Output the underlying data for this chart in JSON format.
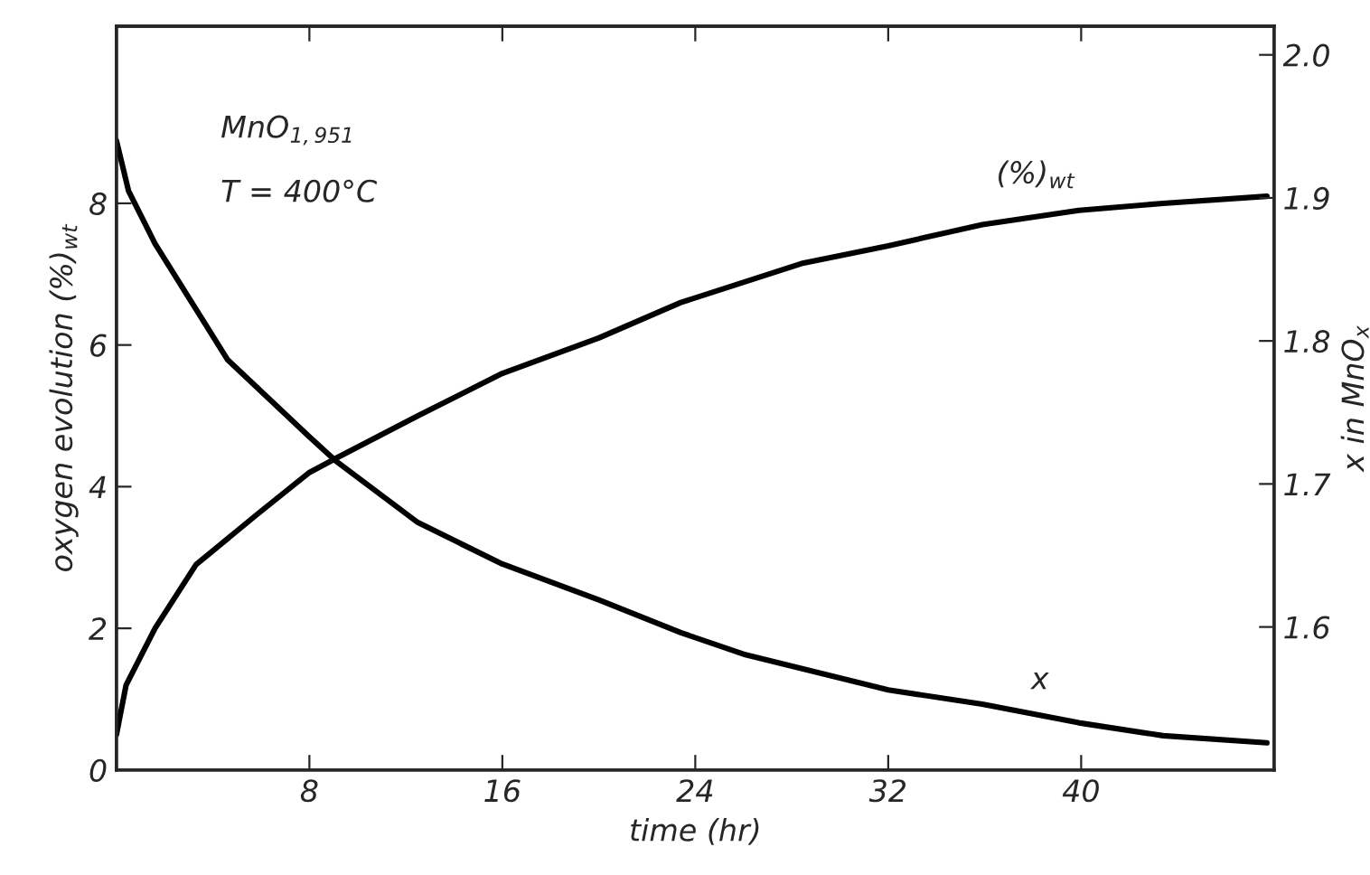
{
  "chart_data": {
    "type": "line",
    "xlabel": "time (hr)",
    "ylabel": "oxygen evolution (%)$_{wt}$",
    "y2label": "x in MnO$_{x}$",
    "annotations": [
      "MnO$_{1,951}$",
      "T = 400°C",
      "(%)$_{wt}$",
      "x"
    ],
    "series": [
      {
        "color": "#000000",
        "x": [
          0,
          0.4,
          1.6,
          3.3,
          5.8,
          8,
          9.1,
          12.5,
          16,
          20,
          23.4,
          28.4,
          32,
          35.9,
          39.9,
          43.4,
          47.7
        ],
        "values": [
          0.5,
          1.2,
          2.0,
          2.9,
          3.6,
          4.2,
          4.4,
          5.0,
          5.6,
          6.1,
          6.6,
          7.15,
          7.4,
          7.7,
          7.9,
          8.0,
          8.1
        ]
      },
      {
        "color": "#000000",
        "axis": "y2",
        "x": [
          0,
          0.5,
          1.6,
          4.6,
          8,
          9.1,
          12.5,
          16,
          20,
          23.4,
          26,
          32,
          35.9,
          39.9,
          43.4,
          47.7
        ],
        "values": [
          1.94,
          1.905,
          1.868,
          1.787,
          1.733,
          1.716,
          1.673,
          1.644,
          1.619,
          1.596,
          1.581,
          1.556,
          1.546,
          1.533,
          1.524,
          1.519
        ]
      }
    ],
    "xlim": [
      0,
      48
    ],
    "xticks": [
      {
        "value": 0,
        "label": null
      },
      8,
      16,
      24,
      32,
      40
    ],
    "ylim": [
      0,
      10.5
    ],
    "yticks": [
      0,
      2,
      4,
      6,
      8
    ],
    "y2lim": [
      1.5,
      2.02
    ],
    "y2ticks": [
      1.6,
      1.7,
      1.8,
      1.9,
      {
        "value": 2.0,
        "label": "2.0"
      }
    ],
    "grid": false,
    "legend": false,
    "marker": "none",
    "line_style": "solid"
  }
}
